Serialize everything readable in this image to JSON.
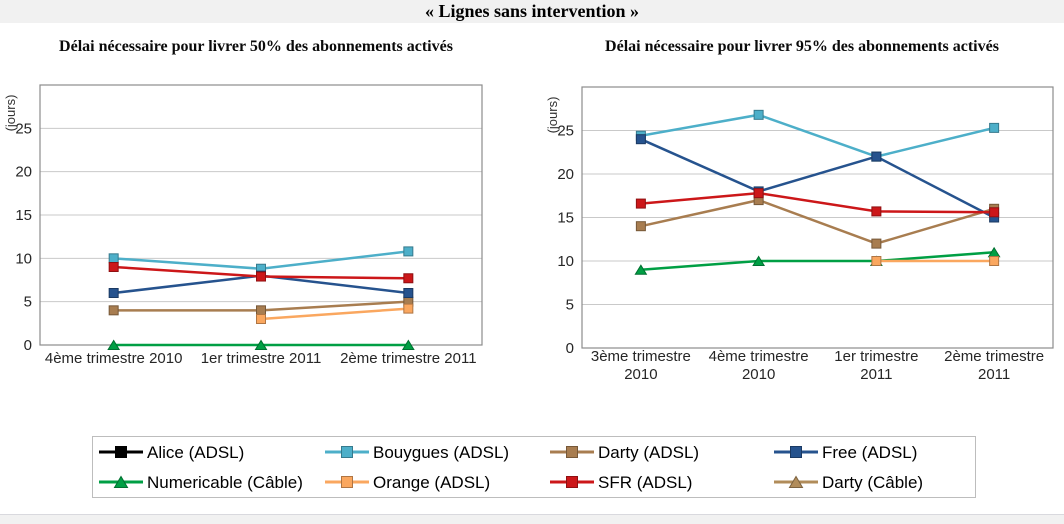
{
  "page": {
    "main_title": "« Lignes sans intervention »",
    "background_color": "#ffffff",
    "band_color": "#f1f1f1",
    "plot_frame_color": "#8c8c8c",
    "gridline_color": "#c9c9c9"
  },
  "chart_data": [
    {
      "type": "line",
      "title": "Délai nécessaire pour livrer 50% des abonnements activés",
      "ylabel": "(jours)",
      "ylim": [
        0,
        30
      ],
      "yticks": [
        0,
        5,
        10,
        15,
        20,
        25
      ],
      "grid": true,
      "legend_position": "bottom-shared",
      "categories": [
        "4ème trimestre 2010",
        "1er trimestre 2011",
        "2ème trimestre 2011"
      ],
      "category_lines": [
        [
          "4ème trimestre 2010"
        ],
        [
          "1er trimestre 2011"
        ],
        [
          "2ème trimestre 2011"
        ]
      ],
      "series": [
        {
          "name": "Alice (ADSL)",
          "color": "#000000",
          "marker": "square",
          "values": [
            null,
            null,
            null
          ]
        },
        {
          "name": "Bouygues (ADSL)",
          "color": "#4dafc9",
          "marker": "square",
          "values": [
            10,
            8.8,
            10.8
          ]
        },
        {
          "name": "Darty (ADSL)",
          "color": "#a87d50",
          "marker": "square",
          "values": [
            4,
            4,
            5
          ]
        },
        {
          "name": "Free (ADSL)",
          "color": "#26538e",
          "marker": "square",
          "values": [
            6,
            8,
            6
          ]
        },
        {
          "name": "Numericable (Câble)",
          "color": "#009f44",
          "marker": "triangle",
          "values": [
            0,
            0,
            0
          ]
        },
        {
          "name": "Orange (ADSL)",
          "color": "#faa75f",
          "marker": "square",
          "values": [
            null,
            3,
            4.2
          ]
        },
        {
          "name": "SFR (ADSL)",
          "color": "#cc1719",
          "marker": "square",
          "values": [
            9,
            7.9,
            7.7
          ]
        },
        {
          "name": "Darty (Câble)",
          "color": "#b18c5a",
          "marker": "triangle",
          "values": [
            null,
            null,
            null
          ]
        }
      ]
    },
    {
      "type": "line",
      "title": "Délai nécessaire pour livrer 95% des abonnements activés",
      "ylabel": "(jours)",
      "ylim": [
        0,
        30
      ],
      "yticks": [
        0,
        5,
        10,
        15,
        20,
        25
      ],
      "grid": true,
      "legend_position": "bottom-shared",
      "categories": [
        "3ème trimestre 2010",
        "4ème trimestre 2010",
        "1er trimestre 2011",
        "2ème trimestre 2011"
      ],
      "category_lines": [
        [
          "3ème trimestre",
          "2010"
        ],
        [
          "4ème trimestre",
          "2010"
        ],
        [
          "1er trimestre",
          "2011"
        ],
        [
          "2ème trimestre",
          "2011"
        ]
      ],
      "series": [
        {
          "name": "Alice (ADSL)",
          "color": "#000000",
          "marker": "square",
          "values": [
            null,
            null,
            null,
            null
          ]
        },
        {
          "name": "Bouygues (ADSL)",
          "color": "#4dafc9",
          "marker": "square",
          "values": [
            24.4,
            26.8,
            22,
            25.3
          ]
        },
        {
          "name": "Darty (ADSL)",
          "color": "#a87d50",
          "marker": "square",
          "values": [
            14,
            17,
            12,
            16
          ]
        },
        {
          "name": "Free (ADSL)",
          "color": "#26538e",
          "marker": "square",
          "values": [
            24,
            18,
            22,
            15
          ]
        },
        {
          "name": "Numericable (Câble)",
          "color": "#009f44",
          "marker": "triangle",
          "values": [
            9,
            10,
            10,
            11
          ]
        },
        {
          "name": "Orange (ADSL)",
          "color": "#faa75f",
          "marker": "square",
          "values": [
            null,
            null,
            10,
            10
          ]
        },
        {
          "name": "SFR (ADSL)",
          "color": "#cc1719",
          "marker": "square",
          "values": [
            16.6,
            17.8,
            15.7,
            15.6
          ]
        },
        {
          "name": "Darty (Câble)",
          "color": "#b18c5a",
          "marker": "triangle",
          "values": [
            null,
            null,
            null,
            null
          ]
        }
      ]
    }
  ],
  "legend": {
    "items": [
      {
        "label": "Alice (ADSL)",
        "color": "#000000",
        "marker": "square"
      },
      {
        "label": "Bouygues (ADSL)",
        "color": "#4dafc9",
        "marker": "square"
      },
      {
        "label": "Darty (ADSL)",
        "color": "#a87d50",
        "marker": "square"
      },
      {
        "label": "Free (ADSL)",
        "color": "#26538e",
        "marker": "square"
      },
      {
        "label": "Numericable (Câble)",
        "color": "#009f44",
        "marker": "triangle"
      },
      {
        "label": "Orange (ADSL)",
        "color": "#faa75f",
        "marker": "square"
      },
      {
        "label": "SFR (ADSL)",
        "color": "#cc1719",
        "marker": "square"
      },
      {
        "label": "Darty (Câble)",
        "color": "#b18c5a",
        "marker": "triangle"
      }
    ]
  }
}
